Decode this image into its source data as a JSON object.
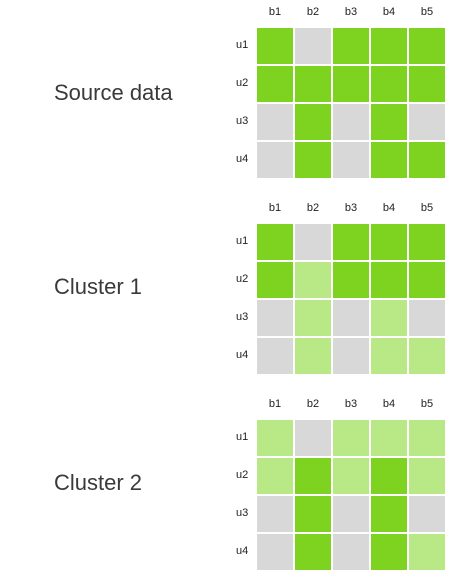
{
  "columns": [
    "b1",
    "b2",
    "b3",
    "b4",
    "b5"
  ],
  "rows": [
    "u1",
    "u2",
    "u3",
    "u4"
  ],
  "colors": {
    "strong": "#7ed321",
    "light": "#b8e986",
    "empty": "#d8d8d8"
  },
  "panels": [
    {
      "label": "Source data",
      "matrix": [
        [
          "strong",
          "empty",
          "strong",
          "strong",
          "strong"
        ],
        [
          "strong",
          "strong",
          "strong",
          "strong",
          "strong"
        ],
        [
          "empty",
          "strong",
          "empty",
          "strong",
          "empty"
        ],
        [
          "empty",
          "strong",
          "empty",
          "strong",
          "strong"
        ]
      ]
    },
    {
      "label": "Cluster 1",
      "matrix": [
        [
          "strong",
          "empty",
          "strong",
          "strong",
          "strong"
        ],
        [
          "strong",
          "light",
          "strong",
          "strong",
          "strong"
        ],
        [
          "empty",
          "light",
          "empty",
          "light",
          "empty"
        ],
        [
          "empty",
          "light",
          "empty",
          "light",
          "light"
        ]
      ]
    },
    {
      "label": "Cluster 2",
      "matrix": [
        [
          "light",
          "empty",
          "light",
          "light",
          "light"
        ],
        [
          "light",
          "strong",
          "light",
          "strong",
          "light"
        ],
        [
          "empty",
          "strong",
          "empty",
          "strong",
          "empty"
        ],
        [
          "empty",
          "strong",
          "empty",
          "strong",
          "light"
        ]
      ]
    }
  ]
}
